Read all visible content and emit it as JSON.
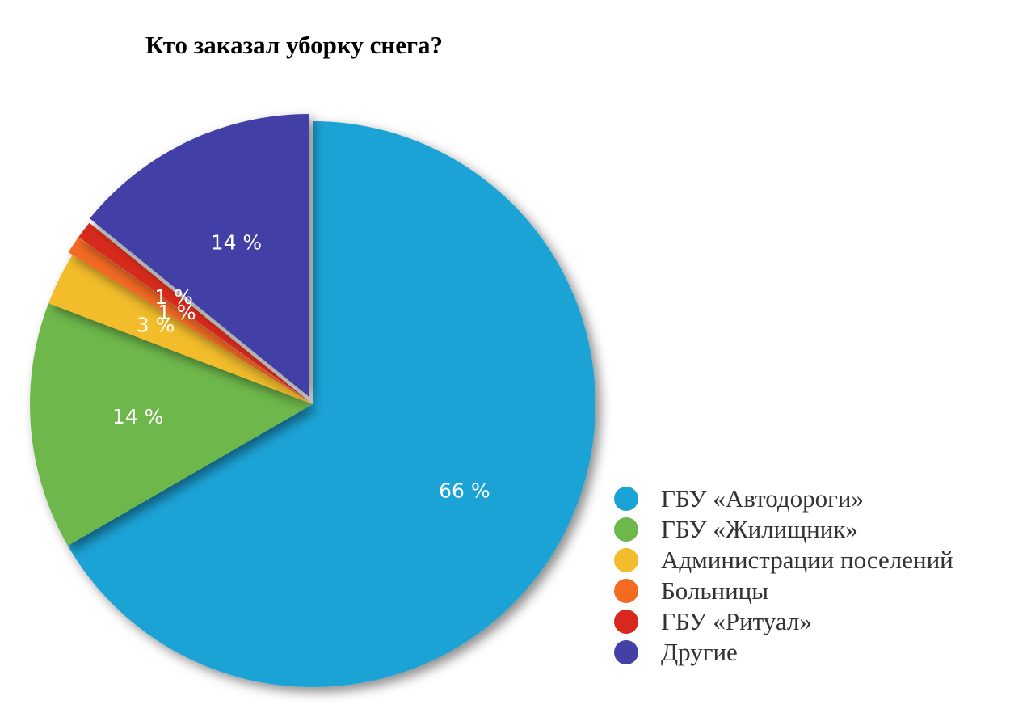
{
  "chart_data": {
    "type": "pie",
    "title": "Кто заказал уборку снега?",
    "unit": "%",
    "slices": [
      {
        "label": "ГБУ «Автодороги»",
        "value": 66,
        "display": "66 %",
        "color": "#1aa3d6"
      },
      {
        "label": "ГБУ «Жилищник»",
        "value": 14,
        "display": "14 %",
        "color": "#6eb84b"
      },
      {
        "label": "Администрации поселений",
        "value": 3,
        "display": "3 %",
        "color": "#f2bc2c"
      },
      {
        "label": "Больницы",
        "value": 1,
        "display": "1 %",
        "color": "#f26b21"
      },
      {
        "label": "ГБУ «Ритуал»",
        "value": 1,
        "display": "1 %",
        "color": "#d7291e"
      },
      {
        "label": "Другие",
        "value": 14,
        "display": "14 %",
        "color": "#4340a6"
      }
    ],
    "legend_position": "bottom-right"
  }
}
